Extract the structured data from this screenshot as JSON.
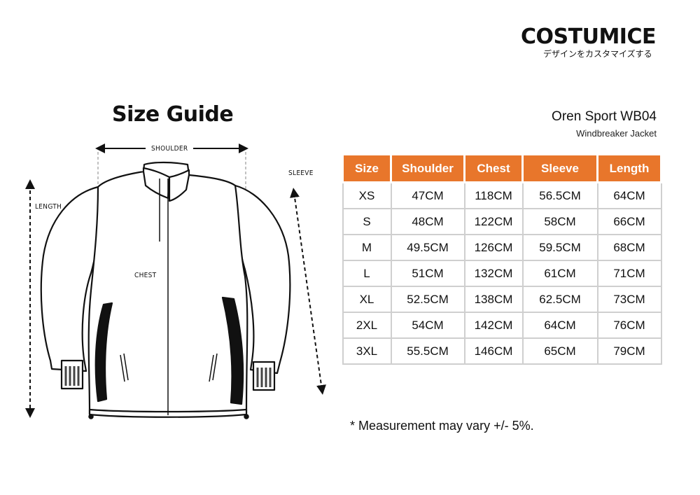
{
  "brand": {
    "name": "COSTUMICE",
    "tagline": "デザインをカスタマイズする"
  },
  "title": "Size Guide",
  "product": {
    "name": "Oren Sport WB04",
    "type": "Windbreaker Jacket"
  },
  "diagram": {
    "shoulder": "SHOULDER",
    "sleeve": "SLEEVE",
    "length": "LENGTH",
    "chest": "CHEST"
  },
  "table": {
    "headers": [
      "Size",
      "Shoulder",
      "Chest",
      "Sleeve",
      "Length"
    ],
    "rows": [
      [
        "XS",
        "47CM",
        "118CM",
        "56.5CM",
        "64CM"
      ],
      [
        "S",
        "48CM",
        "122CM",
        "58CM",
        "66CM"
      ],
      [
        "M",
        "49.5CM",
        "126CM",
        "59.5CM",
        "68CM"
      ],
      [
        "L",
        "51CM",
        "132CM",
        "61CM",
        "71CM"
      ],
      [
        "XL",
        "52.5CM",
        "138CM",
        "62.5CM",
        "73CM"
      ],
      [
        "2XL",
        "54CM",
        "142CM",
        "64CM",
        "76CM"
      ],
      [
        "3XL",
        "55.5CM",
        "146CM",
        "65CM",
        "79CM"
      ]
    ],
    "header_color": "#e8762b"
  },
  "note": "* Measurement may vary +/- 5%."
}
